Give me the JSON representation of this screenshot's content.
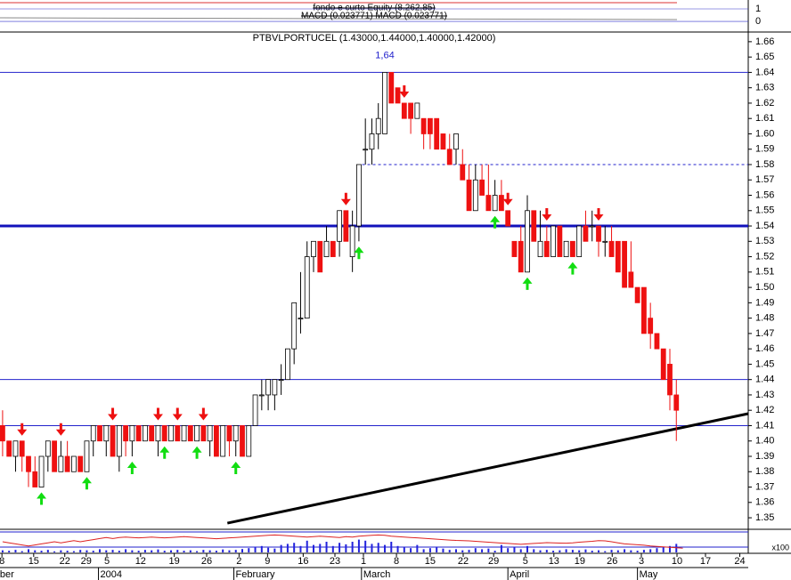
{
  "chart_data": {
    "type": "candlestick",
    "top_panel": {
      "title": "fondo e curto Equity (8.262,85)",
      "subtitle": "MACD (0.023771) MACD (0.023771)",
      "ylim": [
        -0.71,
        1.57
      ],
      "yticks": [
        0,
        1
      ]
    },
    "title": "PTBVLPORTUCEL (1.43000,1.44000,1.40000,1.42000)",
    "annotations": [
      {
        "label": "1,64",
        "value": 1.64,
        "x": 59
      }
    ],
    "xlim": [
      -0.4,
      115.1
    ],
    "xticks": [
      {
        "value": -0.1,
        "label": "8"
      },
      {
        "value": 4.8,
        "label": "15"
      },
      {
        "value": 9.6,
        "label": "22"
      },
      {
        "value": 12.9,
        "label": "29"
      },
      {
        "value": 16.1,
        "label": "5"
      },
      {
        "value": 21.3,
        "label": "12"
      },
      {
        "value": 26.5,
        "label": "19"
      },
      {
        "value": 31.5,
        "label": "26"
      },
      {
        "value": 36.5,
        "label": "2"
      },
      {
        "value": 40.9,
        "label": "9"
      },
      {
        "value": 46.4,
        "label": "16"
      },
      {
        "value": 51.3,
        "label": "23"
      },
      {
        "value": 55.7,
        "label": "1"
      },
      {
        "value": 60.8,
        "label": "8"
      },
      {
        "value": 66.0,
        "label": "15"
      },
      {
        "value": 71.1,
        "label": "22"
      },
      {
        "value": 75.8,
        "label": "29"
      },
      {
        "value": 80.7,
        "label": "5"
      },
      {
        "value": 85.1,
        "label": "13"
      },
      {
        "value": 89.1,
        "label": "19"
      },
      {
        "value": 94.1,
        "label": "26"
      },
      {
        "value": 98.6,
        "label": "3"
      },
      {
        "value": 104.1,
        "label": "10"
      },
      {
        "value": 108.5,
        "label": "17"
      },
      {
        "value": 113.8,
        "label": "24"
      }
    ],
    "xmonths": [
      {
        "value": -0.7,
        "label": "ber"
      },
      {
        "value": 14.8,
        "label": "2004"
      },
      {
        "value": 35.7,
        "label": "February"
      },
      {
        "value": 55.4,
        "label": "March"
      },
      {
        "value": 78.0,
        "label": "April"
      },
      {
        "value": 98.0,
        "label": "May"
      }
    ],
    "ylim": [
      1.3425,
      1.6663
    ],
    "yticks": [
      1.35,
      1.36,
      1.37,
      1.38,
      1.39,
      {
        "value": 1.4,
        "label": "1.40"
      },
      1.41,
      1.42,
      1.43,
      1.44,
      1.45,
      1.46,
      1.47,
      1.48,
      1.49,
      {
        "value": 1.5,
        "label": "1.50"
      },
      1.51,
      1.52,
      1.53,
      1.54,
      1.55,
      1.56,
      1.57,
      1.58,
      1.59,
      {
        "value": 1.6,
        "label": "1.60"
      },
      1.61,
      1.62,
      1.63,
      1.64,
      1.65,
      1.66
    ],
    "open": [
      1.41,
      1.4,
      1.39,
      1.4,
      1.39,
      1.38,
      1.37,
      1.39,
      1.4,
      1.38,
      1.39,
      1.38,
      1.39,
      1.38,
      1.4,
      1.41,
      1.4,
      1.41,
      1.39,
      1.41,
      1.4,
      1.41,
      1.4,
      1.41,
      1.4,
      1.41,
      1.4,
      1.41,
      1.4,
      1.41,
      1.4,
      1.41,
      1.4,
      1.41,
      1.39,
      1.41,
      1.4,
      1.41,
      1.39,
      1.41,
      1.43,
      1.43,
      1.43,
      1.44,
      1.44,
      1.46,
      1.48,
      1.48,
      1.52,
      1.53,
      1.52,
      1.53,
      1.53,
      1.55,
      1.52,
      1.54,
      1.59,
      1.59,
      1.6,
      1.6,
      1.64,
      1.63,
      1.62,
      1.62,
      1.61,
      1.61,
      1.61,
      1.61,
      1.6,
      1.59,
      1.59,
      1.58,
      1.57,
      1.55,
      1.57,
      1.56,
      1.55,
      1.56,
      1.55,
      1.53,
      1.53,
      1.51,
      1.55,
      1.52,
      1.53,
      1.52,
      1.54,
      1.52,
      1.53,
      1.52,
      1.54,
      1.54,
      1.54,
      1.53,
      1.53,
      1.53,
      1.53,
      1.51,
      1.5,
      1.5,
      1.48,
      1.47,
      1.46,
      1.45,
      1.43
    ],
    "high": [
      1.42,
      1.4,
      1.4,
      1.4,
      1.39,
      1.39,
      1.39,
      1.4,
      1.4,
      1.4,
      1.4,
      1.39,
      1.39,
      1.4,
      1.41,
      1.41,
      1.41,
      1.41,
      1.41,
      1.41,
      1.41,
      1.41,
      1.41,
      1.41,
      1.41,
      1.41,
      1.41,
      1.41,
      1.41,
      1.41,
      1.41,
      1.41,
      1.41,
      1.41,
      1.41,
      1.41,
      1.41,
      1.41,
      1.41,
      1.43,
      1.44,
      1.44,
      1.44,
      1.45,
      1.46,
      1.49,
      1.51,
      1.53,
      1.53,
      1.53,
      1.54,
      1.53,
      1.55,
      1.55,
      1.55,
      1.58,
      1.61,
      1.61,
      1.62,
      1.64,
      1.64,
      1.63,
      1.62,
      1.62,
      1.62,
      1.61,
      1.61,
      1.61,
      1.6,
      1.6,
      1.6,
      1.59,
      1.58,
      1.58,
      1.58,
      1.58,
      1.57,
      1.57,
      1.55,
      1.53,
      1.54,
      1.56,
      1.55,
      1.55,
      1.54,
      1.54,
      1.54,
      1.53,
      1.53,
      1.54,
      1.55,
      1.55,
      1.54,
      1.54,
      1.54,
      1.53,
      1.53,
      1.53,
      1.5,
      1.5,
      1.49,
      1.47,
      1.46,
      1.46,
      1.44
    ],
    "low": [
      1.39,
      1.39,
      1.38,
      1.38,
      1.37,
      1.37,
      1.37,
      1.38,
      1.38,
      1.38,
      1.38,
      1.38,
      1.38,
      1.38,
      1.39,
      1.4,
      1.39,
      1.39,
      1.38,
      1.39,
      1.39,
      1.4,
      1.4,
      1.4,
      1.39,
      1.4,
      1.4,
      1.4,
      1.4,
      1.4,
      1.4,
      1.4,
      1.39,
      1.39,
      1.39,
      1.39,
      1.39,
      1.39,
      1.39,
      1.41,
      1.42,
      1.42,
      1.42,
      1.43,
      1.44,
      1.45,
      1.47,
      1.48,
      1.51,
      1.51,
      1.52,
      1.52,
      1.52,
      1.53,
      1.51,
      1.53,
      1.58,
      1.58,
      1.59,
      1.6,
      1.62,
      1.62,
      1.61,
      1.6,
      1.61,
      1.59,
      1.59,
      1.59,
      1.59,
      1.58,
      1.58,
      1.57,
      1.55,
      1.55,
      1.56,
      1.55,
      1.55,
      1.55,
      1.54,
      1.52,
      1.51,
      1.51,
      1.53,
      1.52,
      1.52,
      1.52,
      1.52,
      1.52,
      1.52,
      1.52,
      1.53,
      1.53,
      1.52,
      1.52,
      1.52,
      1.51,
      1.5,
      1.5,
      1.49,
      1.47,
      1.46,
      1.46,
      1.44,
      1.42,
      1.4
    ],
    "close": [
      1.4,
      1.39,
      1.4,
      1.39,
      1.38,
      1.37,
      1.39,
      1.4,
      1.38,
      1.39,
      1.38,
      1.39,
      1.38,
      1.4,
      1.41,
      1.4,
      1.41,
      1.39,
      1.41,
      1.4,
      1.41,
      1.4,
      1.41,
      1.4,
      1.41,
      1.4,
      1.41,
      1.4,
      1.41,
      1.4,
      1.41,
      1.4,
      1.41,
      1.39,
      1.41,
      1.4,
      1.41,
      1.39,
      1.41,
      1.43,
      1.43,
      1.44,
      1.44,
      1.44,
      1.46,
      1.49,
      1.48,
      1.52,
      1.53,
      1.51,
      1.53,
      1.52,
      1.55,
      1.53,
      1.54,
      1.58,
      1.59,
      1.6,
      1.61,
      1.64,
      1.62,
      1.62,
      1.61,
      1.61,
      1.62,
      1.6,
      1.6,
      1.59,
      1.59,
      1.58,
      1.6,
      1.57,
      1.55,
      1.57,
      1.56,
      1.55,
      1.56,
      1.55,
      1.54,
      1.52,
      1.51,
      1.55,
      1.53,
      1.53,
      1.52,
      1.54,
      1.52,
      1.53,
      1.52,
      1.54,
      1.53,
      1.54,
      1.53,
      1.53,
      1.52,
      1.51,
      1.5,
      1.5,
      1.49,
      1.47,
      1.47,
      1.46,
      1.44,
      1.43,
      1.42
    ],
    "up_color": "#ffffff",
    "down_color": "#ee1111",
    "sell_signals": [
      3,
      9,
      17,
      24,
      27,
      31,
      53,
      62,
      78,
      84,
      92
    ],
    "buy_signals": [
      6,
      13,
      20,
      25,
      30,
      36,
      55,
      76,
      81,
      88
    ],
    "hlines": [
      1.64,
      1.44,
      1.41
    ],
    "support": 1.54,
    "dashed_line": {
      "value": 1.58,
      "from": 55.5
    },
    "trendline": {
      "x": [
        34.7,
        115.1
      ],
      "y": [
        1.3465,
        1.4178
      ]
    },
    "indicator_panel": {
      "label": "x100",
      "ylim": [
        0,
        100
      ],
      "oscillator": [
        50,
        45,
        40,
        35,
        30,
        35,
        40,
        45,
        50,
        45,
        50,
        55,
        50,
        55,
        60,
        65,
        70,
        65,
        70,
        72,
        70,
        68,
        70,
        72,
        70,
        68,
        70,
        72,
        74,
        72,
        70,
        68,
        66,
        64,
        66,
        68,
        70,
        72,
        74,
        76,
        78,
        80,
        82,
        80,
        78,
        76,
        74,
        72,
        74,
        76,
        74,
        72,
        70,
        74,
        72,
        76,
        78,
        80,
        82,
        80,
        76,
        74,
        72,
        70,
        68,
        66,
        64,
        62,
        60,
        58,
        56,
        55,
        54,
        52,
        50,
        48,
        46,
        44,
        42,
        40,
        38,
        40,
        42,
        44,
        46,
        45,
        44,
        43,
        45,
        48,
        50,
        52,
        55,
        54,
        50,
        45,
        40,
        38,
        36,
        34,
        30,
        28,
        26,
        24,
        22,
        20
      ],
      "volume": [
        10,
        8,
        12,
        6,
        15,
        10,
        8,
        12,
        5,
        10,
        8,
        6,
        12,
        10,
        8,
        15,
        10,
        12,
        8,
        15,
        10,
        8,
        12,
        10,
        14,
        8,
        10,
        12,
        8,
        10,
        6,
        12,
        10,
        8,
        14,
        10,
        12,
        16,
        20,
        25,
        30,
        22,
        18,
        35,
        40,
        45,
        30,
        55,
        35,
        40,
        50,
        30,
        45,
        38,
        50,
        60,
        55,
        40,
        45,
        35,
        50,
        30,
        25,
        20,
        35,
        15,
        20,
        25,
        18,
        12,
        15,
        10,
        12,
        20,
        15,
        18,
        8,
        35,
        20,
        25,
        15,
        30,
        15,
        10,
        12,
        8,
        10,
        15,
        12,
        10,
        14,
        8,
        10,
        6,
        12,
        10,
        15,
        10,
        8,
        12,
        15,
        20,
        25,
        30,
        40
      ]
    }
  }
}
